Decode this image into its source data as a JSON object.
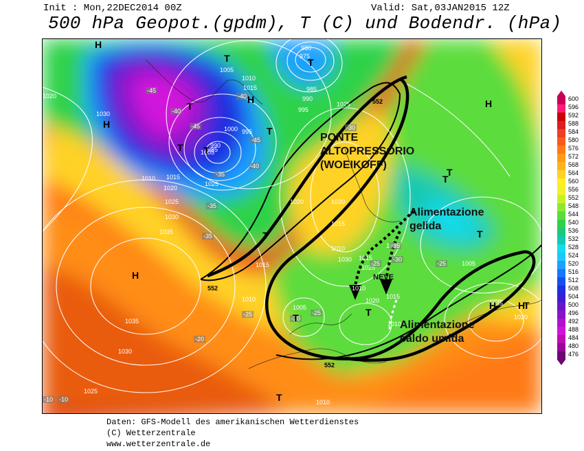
{
  "header": {
    "init": "Init : Mon,22DEC2014 00Z",
    "valid": "Valid: Sat,03JAN2015 12Z",
    "title": "500 hPa Geopot.(gpdm), T (C) und Bodendr. (hPa)"
  },
  "footer": {
    "line1": "Daten: GFS-Modell des amerikanischen Wetterdienstes",
    "line2": "(C) Wetterzentrale",
    "line3": "www.wetterzentrale.de"
  },
  "legend": {
    "levels": [
      600,
      596,
      592,
      588,
      584,
      580,
      576,
      572,
      568,
      564,
      560,
      556,
      552,
      548,
      544,
      540,
      536,
      532,
      528,
      524,
      520,
      516,
      512,
      508,
      504,
      500,
      496,
      492,
      488,
      484,
      480,
      476
    ],
    "colors": [
      "#c8005a",
      "#ff1a7a",
      "#c80000",
      "#dd1e1e",
      "#ee3d22",
      "#f85a1e",
      "#ff7a18",
      "#ff9a1a",
      "#ffb41e",
      "#ffd226",
      "#ffee28",
      "#f0f22a",
      "#c8f028",
      "#8ee832",
      "#5cdc3c",
      "#2ed24a",
      "#1ec878",
      "#14c8b2",
      "#14dcec",
      "#1ec8ff",
      "#1ea0ff",
      "#1478ff",
      "#1450f0",
      "#1e2ee0",
      "#3c1ed2",
      "#6418c8",
      "#8a14c8",
      "#b012d2",
      "#d212dc",
      "#c00ab4",
      "#9a0896",
      "#6e0674"
    ]
  },
  "annotations": {
    "ponte": "PONTE\nALTOPRESSORIO\n(WOEIKOFF)",
    "gelida": "Alimentazione\ngelida",
    "neve": "NEVE",
    "caldo": "Alimentazione\ncaldo umida"
  },
  "pressure_labels": [
    "980",
    "975",
    "985",
    "990",
    "995",
    "1005",
    "1010",
    "1015",
    "1020",
    "1030",
    "1000",
    "995",
    "990",
    "985",
    "1005",
    "1025",
    "1015",
    "1010",
    "1020",
    "1025",
    "1030",
    "1035",
    "1015",
    "1010",
    "1035",
    "1030",
    "1025",
    "1020",
    "1015",
    "1010",
    "1030",
    "1025",
    "1015",
    "1005",
    "1010",
    "1020",
    "1015",
    "1010",
    "1005",
    "1035",
    "1030",
    "1025",
    "1010",
    "1020",
    "1010"
  ],
  "temperature_labels": [
    "-45",
    "-40",
    "-45",
    "-40",
    "-35",
    "-45",
    "-40",
    "-35",
    "-35",
    "-30",
    "-35",
    "-30",
    "-25",
    "-25",
    "-20",
    "-25",
    "-20",
    "-25",
    "-10",
    "-10"
  ],
  "h_markers": [
    "H",
    "H",
    "H",
    "H",
    "H",
    "H",
    "H"
  ],
  "t_markers": [
    "T",
    "T",
    "T",
    "T",
    "T",
    "T",
    "T",
    "T",
    "T",
    "T",
    "T",
    "T",
    "T",
    "T"
  ],
  "contour_552": [
    "552",
    "552",
    "552"
  ]
}
